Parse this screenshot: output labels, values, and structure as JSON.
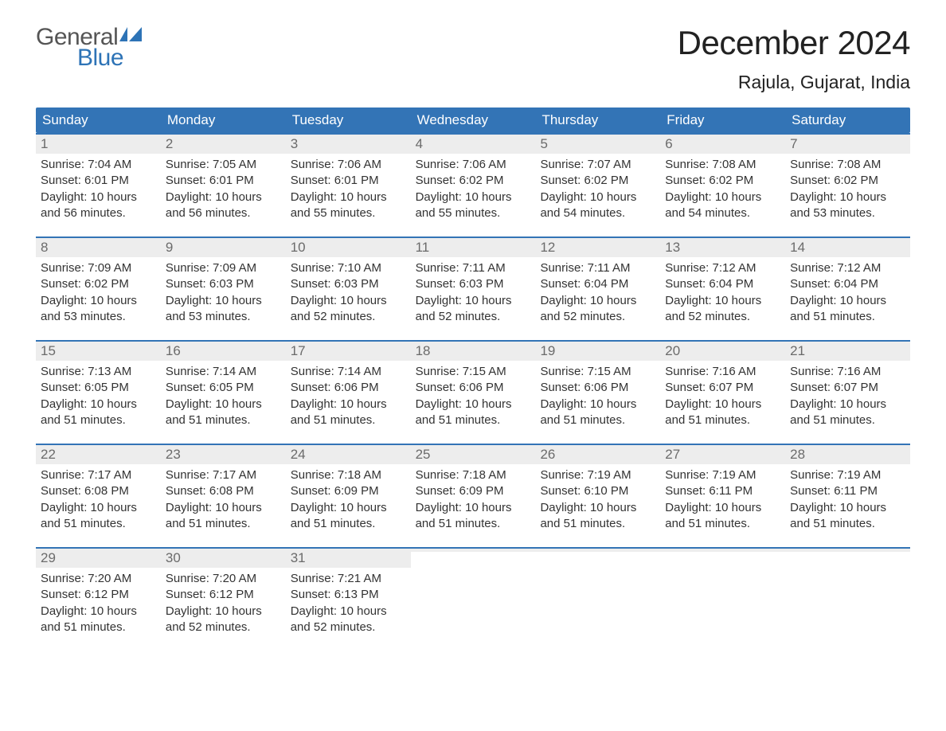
{
  "logo": {
    "top": "General",
    "bottom": "Blue",
    "icon_color": "#2d73b6"
  },
  "title": "December 2024",
  "location": "Rajula, Gujarat, India",
  "colors": {
    "header_bg": "#3374b6",
    "header_text": "#ffffff",
    "daynum_bg": "#ededed",
    "daynum_text": "#6b6b6b",
    "body_text": "#333333",
    "rule": "#3374b6"
  },
  "weekdays": [
    "Sunday",
    "Monday",
    "Tuesday",
    "Wednesday",
    "Thursday",
    "Friday",
    "Saturday"
  ],
  "weeks": [
    [
      {
        "n": "1",
        "sunrise": "Sunrise: 7:04 AM",
        "sunset": "Sunset: 6:01 PM",
        "d1": "Daylight: 10 hours",
        "d2": "and 56 minutes."
      },
      {
        "n": "2",
        "sunrise": "Sunrise: 7:05 AM",
        "sunset": "Sunset: 6:01 PM",
        "d1": "Daylight: 10 hours",
        "d2": "and 56 minutes."
      },
      {
        "n": "3",
        "sunrise": "Sunrise: 7:06 AM",
        "sunset": "Sunset: 6:01 PM",
        "d1": "Daylight: 10 hours",
        "d2": "and 55 minutes."
      },
      {
        "n": "4",
        "sunrise": "Sunrise: 7:06 AM",
        "sunset": "Sunset: 6:02 PM",
        "d1": "Daylight: 10 hours",
        "d2": "and 55 minutes."
      },
      {
        "n": "5",
        "sunrise": "Sunrise: 7:07 AM",
        "sunset": "Sunset: 6:02 PM",
        "d1": "Daylight: 10 hours",
        "d2": "and 54 minutes."
      },
      {
        "n": "6",
        "sunrise": "Sunrise: 7:08 AM",
        "sunset": "Sunset: 6:02 PM",
        "d1": "Daylight: 10 hours",
        "d2": "and 54 minutes."
      },
      {
        "n": "7",
        "sunrise": "Sunrise: 7:08 AM",
        "sunset": "Sunset: 6:02 PM",
        "d1": "Daylight: 10 hours",
        "d2": "and 53 minutes."
      }
    ],
    [
      {
        "n": "8",
        "sunrise": "Sunrise: 7:09 AM",
        "sunset": "Sunset: 6:02 PM",
        "d1": "Daylight: 10 hours",
        "d2": "and 53 minutes."
      },
      {
        "n": "9",
        "sunrise": "Sunrise: 7:09 AM",
        "sunset": "Sunset: 6:03 PM",
        "d1": "Daylight: 10 hours",
        "d2": "and 53 minutes."
      },
      {
        "n": "10",
        "sunrise": "Sunrise: 7:10 AM",
        "sunset": "Sunset: 6:03 PM",
        "d1": "Daylight: 10 hours",
        "d2": "and 52 minutes."
      },
      {
        "n": "11",
        "sunrise": "Sunrise: 7:11 AM",
        "sunset": "Sunset: 6:03 PM",
        "d1": "Daylight: 10 hours",
        "d2": "and 52 minutes."
      },
      {
        "n": "12",
        "sunrise": "Sunrise: 7:11 AM",
        "sunset": "Sunset: 6:04 PM",
        "d1": "Daylight: 10 hours",
        "d2": "and 52 minutes."
      },
      {
        "n": "13",
        "sunrise": "Sunrise: 7:12 AM",
        "sunset": "Sunset: 6:04 PM",
        "d1": "Daylight: 10 hours",
        "d2": "and 52 minutes."
      },
      {
        "n": "14",
        "sunrise": "Sunrise: 7:12 AM",
        "sunset": "Sunset: 6:04 PM",
        "d1": "Daylight: 10 hours",
        "d2": "and 51 minutes."
      }
    ],
    [
      {
        "n": "15",
        "sunrise": "Sunrise: 7:13 AM",
        "sunset": "Sunset: 6:05 PM",
        "d1": "Daylight: 10 hours",
        "d2": "and 51 minutes."
      },
      {
        "n": "16",
        "sunrise": "Sunrise: 7:14 AM",
        "sunset": "Sunset: 6:05 PM",
        "d1": "Daylight: 10 hours",
        "d2": "and 51 minutes."
      },
      {
        "n": "17",
        "sunrise": "Sunrise: 7:14 AM",
        "sunset": "Sunset: 6:06 PM",
        "d1": "Daylight: 10 hours",
        "d2": "and 51 minutes."
      },
      {
        "n": "18",
        "sunrise": "Sunrise: 7:15 AM",
        "sunset": "Sunset: 6:06 PM",
        "d1": "Daylight: 10 hours",
        "d2": "and 51 minutes."
      },
      {
        "n": "19",
        "sunrise": "Sunrise: 7:15 AM",
        "sunset": "Sunset: 6:06 PM",
        "d1": "Daylight: 10 hours",
        "d2": "and 51 minutes."
      },
      {
        "n": "20",
        "sunrise": "Sunrise: 7:16 AM",
        "sunset": "Sunset: 6:07 PM",
        "d1": "Daylight: 10 hours",
        "d2": "and 51 minutes."
      },
      {
        "n": "21",
        "sunrise": "Sunrise: 7:16 AM",
        "sunset": "Sunset: 6:07 PM",
        "d1": "Daylight: 10 hours",
        "d2": "and 51 minutes."
      }
    ],
    [
      {
        "n": "22",
        "sunrise": "Sunrise: 7:17 AM",
        "sunset": "Sunset: 6:08 PM",
        "d1": "Daylight: 10 hours",
        "d2": "and 51 minutes."
      },
      {
        "n": "23",
        "sunrise": "Sunrise: 7:17 AM",
        "sunset": "Sunset: 6:08 PM",
        "d1": "Daylight: 10 hours",
        "d2": "and 51 minutes."
      },
      {
        "n": "24",
        "sunrise": "Sunrise: 7:18 AM",
        "sunset": "Sunset: 6:09 PM",
        "d1": "Daylight: 10 hours",
        "d2": "and 51 minutes."
      },
      {
        "n": "25",
        "sunrise": "Sunrise: 7:18 AM",
        "sunset": "Sunset: 6:09 PM",
        "d1": "Daylight: 10 hours",
        "d2": "and 51 minutes."
      },
      {
        "n": "26",
        "sunrise": "Sunrise: 7:19 AM",
        "sunset": "Sunset: 6:10 PM",
        "d1": "Daylight: 10 hours",
        "d2": "and 51 minutes."
      },
      {
        "n": "27",
        "sunrise": "Sunrise: 7:19 AM",
        "sunset": "Sunset: 6:11 PM",
        "d1": "Daylight: 10 hours",
        "d2": "and 51 minutes."
      },
      {
        "n": "28",
        "sunrise": "Sunrise: 7:19 AM",
        "sunset": "Sunset: 6:11 PM",
        "d1": "Daylight: 10 hours",
        "d2": "and 51 minutes."
      }
    ],
    [
      {
        "n": "29",
        "sunrise": "Sunrise: 7:20 AM",
        "sunset": "Sunset: 6:12 PM",
        "d1": "Daylight: 10 hours",
        "d2": "and 51 minutes."
      },
      {
        "n": "30",
        "sunrise": "Sunrise: 7:20 AM",
        "sunset": "Sunset: 6:12 PM",
        "d1": "Daylight: 10 hours",
        "d2": "and 52 minutes."
      },
      {
        "n": "31",
        "sunrise": "Sunrise: 7:21 AM",
        "sunset": "Sunset: 6:13 PM",
        "d1": "Daylight: 10 hours",
        "d2": "and 52 minutes."
      },
      {
        "empty": true
      },
      {
        "empty": true
      },
      {
        "empty": true
      },
      {
        "empty": true
      }
    ]
  ]
}
